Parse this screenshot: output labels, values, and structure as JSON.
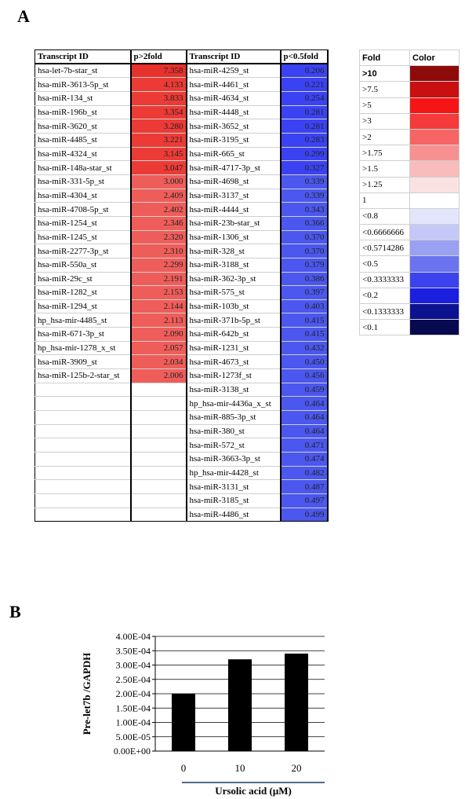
{
  "panels": {
    "a_label": "A",
    "b_label": "B"
  },
  "table": {
    "headers": [
      "Transcript ID",
      "p>2fold",
      "Transcript ID",
      "p<0.5fold"
    ],
    "up": [
      {
        "id": "hsa-let-7b-star_st",
        "value": "7.358",
        "color": "#e8302c"
      },
      {
        "id": "hsa-miR-3613-5p_st",
        "value": "4.133",
        "color": "#ec3b36"
      },
      {
        "id": "hsa-miR-134_st",
        "value": "3.833",
        "color": "#ec3b36"
      },
      {
        "id": "hsa-miR-196b_st",
        "value": "3.354",
        "color": "#ec3b36"
      },
      {
        "id": "hsa-miR-3620_st",
        "value": "3.280",
        "color": "#ec3b36"
      },
      {
        "id": "hsa-miR-4485_st",
        "value": "3.221",
        "color": "#ec3b36"
      },
      {
        "id": "hsa-miR-4324_st",
        "value": "3.145",
        "color": "#ec3b36"
      },
      {
        "id": "hsa-miR-148a-star_st",
        "value": "3.047",
        "color": "#ec3b36"
      },
      {
        "id": "hsa-miR-331-5p_st",
        "value": "3.000",
        "color": "#ef5d5a"
      },
      {
        "id": "hsa-miR-4304_st",
        "value": "2.409",
        "color": "#ef5d5a"
      },
      {
        "id": "hsa-miR-4708-5p_st",
        "value": "2.402",
        "color": "#ef5d5a"
      },
      {
        "id": "hsa-miR-1254_st",
        "value": "2.346",
        "color": "#ef5d5a"
      },
      {
        "id": "hsa-miR-1245_st",
        "value": "2.320",
        "color": "#ef5d5a"
      },
      {
        "id": "hsa-miR-2277-3p_st",
        "value": "2.310",
        "color": "#ef5d5a"
      },
      {
        "id": "hsa-miR-550a_st",
        "value": "2.299",
        "color": "#ef5d5a"
      },
      {
        "id": "hsa-miR-29c_st",
        "value": "2.191",
        "color": "#ef5d5a"
      },
      {
        "id": "hsa-miR-1282_st",
        "value": "2.153",
        "color": "#ef5d5a"
      },
      {
        "id": "hsa-miR-1294_st",
        "value": "2.144",
        "color": "#ef5d5a"
      },
      {
        "id": "hp_hsa-mir-4485_st",
        "value": "2.113",
        "color": "#ef5d5a"
      },
      {
        "id": "hsa-miR-671-3p_st",
        "value": "2.090",
        "color": "#ef5d5a"
      },
      {
        "id": "hp_hsa-mir-1278_x_st",
        "value": "2.057",
        "color": "#ef5d5a"
      },
      {
        "id": "hsa-miR-3909_st",
        "value": "2.034",
        "color": "#ef5d5a"
      },
      {
        "id": "hsa-miR-125b-2-star_st",
        "value": "2.006",
        "color": "#ef5d5a"
      }
    ],
    "down": [
      {
        "id": "hsa-miR-4259_st",
        "value": "0.206",
        "color": "#3b42f2"
      },
      {
        "id": "hsa-miR-4461_st",
        "value": "0.221",
        "color": "#3b42f2"
      },
      {
        "id": "hsa-miR-4634_st",
        "value": "0.254",
        "color": "#3b42f2"
      },
      {
        "id": "hsa-miR-4448_st",
        "value": "0.281",
        "color": "#3b42f2"
      },
      {
        "id": "hsa-miR-3652_st",
        "value": "0.281",
        "color": "#3b42f2"
      },
      {
        "id": "hsa-miR-3195_st",
        "value": "0.283",
        "color": "#3b42f2"
      },
      {
        "id": "hsa-miR-665_st",
        "value": "0.299",
        "color": "#3b42f2"
      },
      {
        "id": "hsa-miR-4717-3p_st",
        "value": "0.327",
        "color": "#3b42f2"
      },
      {
        "id": "hsa-miR-4698_st",
        "value": "0.339",
        "color": "#4b57ee"
      },
      {
        "id": "hsa-miR-3137_st",
        "value": "0.339",
        "color": "#4b57ee"
      },
      {
        "id": "hsa-miR-4444_st",
        "value": "0.343",
        "color": "#4b57ee"
      },
      {
        "id": "hsa-miR-23b-star_st",
        "value": "0.366",
        "color": "#4b57ee"
      },
      {
        "id": "hsa-miR-1306_st",
        "value": "0.370",
        "color": "#4b57ee"
      },
      {
        "id": "hsa-miR-328_st",
        "value": "0.370",
        "color": "#4b57ee"
      },
      {
        "id": "hsa-miR-3188_st",
        "value": "0.379",
        "color": "#4b57ee"
      },
      {
        "id": "hsa-miR-362-3p_st",
        "value": "0.386",
        "color": "#4b57ee"
      },
      {
        "id": "hsa-miR-575_st",
        "value": "0.397",
        "color": "#4b57ee"
      },
      {
        "id": "hsa-miR-103b_st",
        "value": "0.403",
        "color": "#4b57ee"
      },
      {
        "id": "hsa-miR-371b-5p_st",
        "value": "0.415",
        "color": "#4b57ee"
      },
      {
        "id": "hsa-miR-642b_st",
        "value": "0.415",
        "color": "#4b57ee"
      },
      {
        "id": "hsa-miR-1231_st",
        "value": "0.432",
        "color": "#4b57ee"
      },
      {
        "id": "hsa-miR-4673_st",
        "value": "0.450",
        "color": "#4b57ee"
      },
      {
        "id": "hsa-miR-1273f_st",
        "value": "0.456",
        "color": "#4b57ee"
      },
      {
        "id": "hsa-miR-3138_st",
        "value": "0.459",
        "color": "#4b57ee"
      },
      {
        "id": "hp_hsa-mir-4436a_x_st",
        "value": "0.464",
        "color": "#4b57ee"
      },
      {
        "id": "hsa-miR-885-3p_st",
        "value": "0.464",
        "color": "#4b57ee"
      },
      {
        "id": "hsa-miR-380_st",
        "value": "0.464",
        "color": "#4b57ee"
      },
      {
        "id": "hsa-miR-572_st",
        "value": "0.471",
        "color": "#4b57ee"
      },
      {
        "id": "hsa-miR-3663-3p_st",
        "value": "0.474",
        "color": "#4b57ee"
      },
      {
        "id": "hp_hsa-mir-4428_st",
        "value": "0.482",
        "color": "#4b57ee"
      },
      {
        "id": "hsa-miR-3131_st",
        "value": "0.487",
        "color": "#4b57ee"
      },
      {
        "id": "hsa-miR-3185_st",
        "value": "0.497",
        "color": "#4b57ee"
      },
      {
        "id": "hsa-miR-4486_st",
        "value": "0.499",
        "color": "#4b57ee"
      }
    ]
  },
  "legend": {
    "headers": [
      "Fold",
      "Color"
    ],
    "rows": [
      {
        "label": ">10",
        "color": "#8e0b0b",
        "bold": true
      },
      {
        "label": ">7.5",
        "color": "#c81010"
      },
      {
        "label": ">5",
        "color": "#f41616"
      },
      {
        "label": ">3",
        "color": "#f43a3a"
      },
      {
        "label": ">2",
        "color": "#f56565"
      },
      {
        "label": ">1.75",
        "color": "#f79191"
      },
      {
        "label": ">1.5",
        "color": "#f9bcbc"
      },
      {
        "label": ">1.25",
        "color": "#fbe2e2"
      },
      {
        "label": "1",
        "color": "#ffffff"
      },
      {
        "label": "<0.8",
        "color": "#e3e5fb"
      },
      {
        "label": "<0.6666666",
        "color": "#c4c8f6"
      },
      {
        "label": "<0.5714286",
        "color": "#9aa0f2"
      },
      {
        "label": "<0.5",
        "color": "#6b73ee"
      },
      {
        "label": "<0.3333333",
        "color": "#3a43ee"
      },
      {
        "label": "<0.2",
        "color": "#1a1fe0"
      },
      {
        "label": "<0.1333333",
        "color": "#0d1290"
      },
      {
        "label": "<0.1",
        "color": "#070a4e"
      }
    ]
  },
  "chart_data": {
    "type": "bar",
    "categories": [
      "0",
      "10",
      "20"
    ],
    "values": [
      0.0002,
      0.00032,
      0.00034
    ],
    "xlabel": "Ursolic acid (μM)",
    "ylabel": "Pre-let7b /GAPDH",
    "ylim": [
      0,
      0.0004
    ],
    "yticks": [
      "0.00E+00",
      "5.00E-05",
      "1.00E-04",
      "1.50E-04",
      "2.00E-04",
      "2.50E-04",
      "3.00E-04",
      "3.50E-04",
      "4.00E-04"
    ],
    "bar_color": "#000000"
  }
}
